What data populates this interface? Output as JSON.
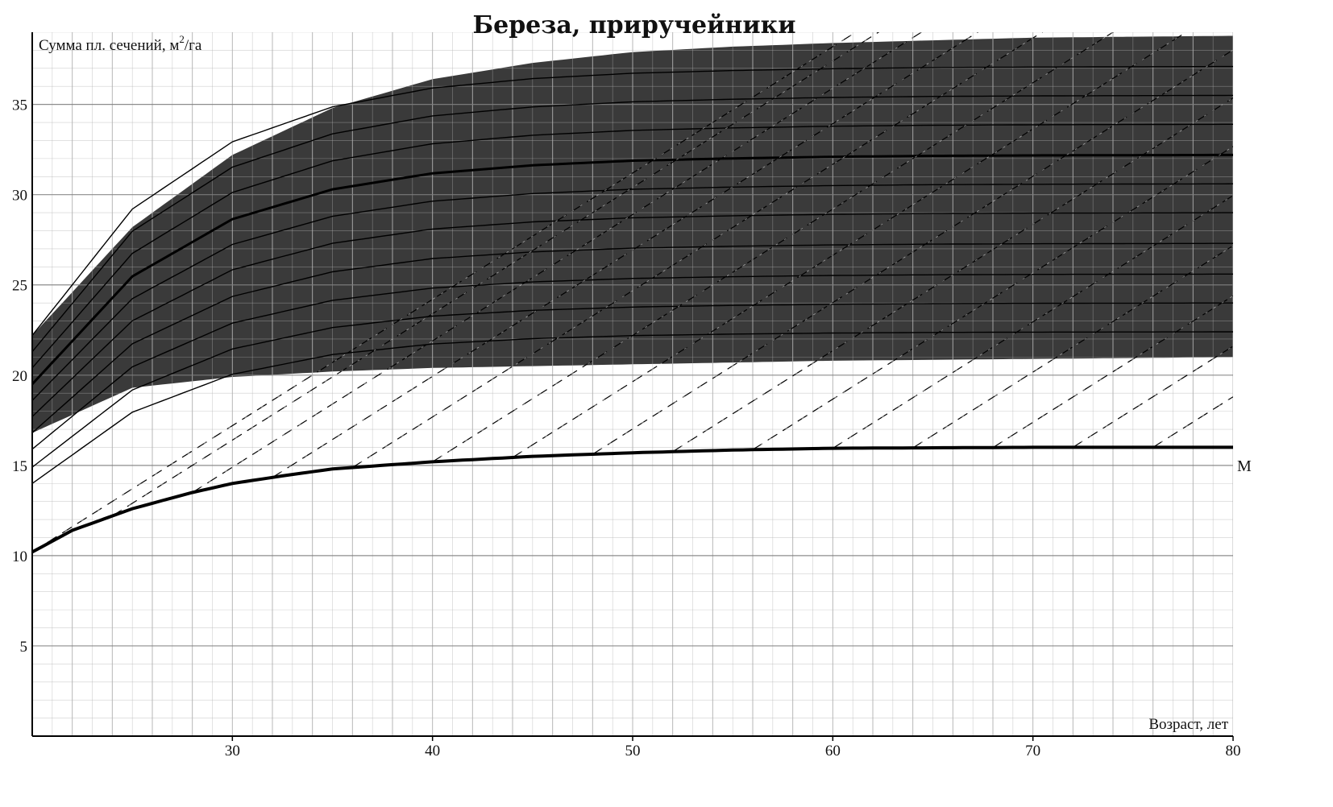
{
  "chart_data": {
    "type": "line",
    "title": "Береза, приручейники",
    "xlabel": "Возраст, лет",
    "ylabel": "Сумма пл. сечений, м²/га",
    "ylabel_main": "Сумма пл. сечений, м",
    "ylabel_sup": "2",
    "ylabel_tail": "/га",
    "xlim": [
      20,
      80
    ],
    "ylim": [
      0,
      39
    ],
    "x_ticks": [
      30,
      40,
      50,
      60,
      70,
      80
    ],
    "y_ticks": [
      5,
      10,
      15,
      20,
      25,
      30,
      35
    ],
    "grid": true,
    "shaded_region": {
      "upper_x": [
        20,
        25,
        30,
        35,
        40,
        45,
        50,
        55,
        60,
        70,
        80
      ],
      "upper_y": [
        22.2,
        28.2,
        32.2,
        34.8,
        36.4,
        37.3,
        37.9,
        38.2,
        38.4,
        38.7,
        38.8
      ],
      "lower_x": [
        20,
        25,
        30,
        35,
        40,
        50,
        60,
        70,
        80
      ],
      "lower_y": [
        16.8,
        19.3,
        19.9,
        20.2,
        20.4,
        20.6,
        20.8,
        20.9,
        21.0
      ],
      "color": "#3a3a3a"
    },
    "growth_curves": {
      "shape_x": [
        20,
        25,
        30,
        35,
        40,
        45,
        50,
        55,
        60,
        65,
        70,
        75,
        80
      ],
      "shape_y": [
        0.0,
        0.47,
        0.72,
        0.85,
        0.92,
        0.955,
        0.975,
        0.985,
        0.992,
        0.996,
        0.998,
        0.999,
        1.0
      ],
      "start_values_at_20": [
        14.0,
        14.9,
        15.9,
        16.8,
        17.7,
        18.6,
        19.5,
        20.4,
        21.3,
        22.2
      ],
      "end_values_at_80": [
        22.4,
        24.0,
        25.6,
        27.3,
        29.0,
        30.6,
        32.2,
        33.9,
        35.5,
        37.1
      ],
      "bold_index": 6
    },
    "dashed_lines": {
      "slope_per_year": 0.7,
      "starts_at_x": [
        20,
        24,
        28,
        32,
        36,
        40,
        44,
        48,
        52,
        56,
        60,
        64,
        68,
        72,
        76
      ]
    },
    "series": [
      {
        "name": "M",
        "x": [
          20,
          22,
          25,
          28,
          30,
          33,
          35,
          40,
          45,
          50,
          55,
          60,
          70,
          80
        ],
        "y": [
          10.2,
          11.4,
          12.6,
          13.5,
          14.0,
          14.5,
          14.8,
          15.2,
          15.5,
          15.7,
          15.85,
          15.95,
          16.0,
          16.0
        ]
      }
    ]
  }
}
